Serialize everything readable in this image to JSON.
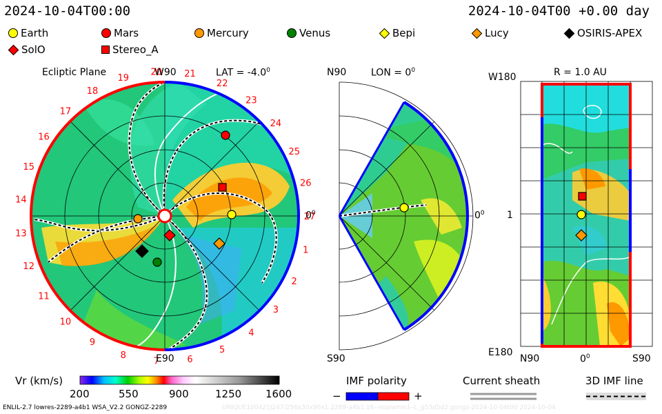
{
  "header": {
    "left_time": "2024-10-04T00:00",
    "right_time": "2024-10-04T00 +0.00 day"
  },
  "legend": [
    {
      "name": "Earth",
      "shape": "circle",
      "color": "#ffff00"
    },
    {
      "name": "Mars",
      "shape": "circle",
      "color": "#ff0000"
    },
    {
      "name": "Mercury",
      "shape": "circle",
      "color": "#ff9900"
    },
    {
      "name": "Venus",
      "shape": "circle",
      "color": "#008000"
    },
    {
      "name": "Bepi",
      "shape": "diamond",
      "color": "#ffff00"
    },
    {
      "name": "Lucy",
      "shape": "diamond",
      "color": "#ff9900"
    },
    {
      "name": "OSIRIS-APEX",
      "shape": "diamond",
      "color": "#000000"
    },
    {
      "name": "SolO",
      "shape": "diamond",
      "color": "#ff0000"
    },
    {
      "name": "Stereo_A",
      "shape": "square",
      "color": "#ff0000"
    }
  ],
  "panels": {
    "ecliptic": {
      "title": "Ecliptic Plane",
      "top_label": "W90",
      "bottom_label": "E90",
      "lat_label": "LAT = -4.0",
      "right_label": "0",
      "deg": "0"
    },
    "meridional": {
      "top_label": "N90",
      "bottom_label": "S90",
      "lon_label": "LON = 0",
      "right_label": "0",
      "deg": "0"
    },
    "rmap": {
      "title": "R = 1.0 AU",
      "top_label": "W180",
      "bottom_label": "E180",
      "left_tick": "1",
      "x_left": "N90",
      "x_mid": "0",
      "x_right": "S90",
      "deg": "0"
    }
  },
  "carrington_numbers": [
    "1",
    "2",
    "3",
    "4",
    "5",
    "6",
    "7",
    "8",
    "9",
    "10",
    "11",
    "12",
    "13",
    "14",
    "15",
    "16",
    "17",
    "18",
    "19",
    "20",
    "21",
    "22",
    "23",
    "24",
    "25",
    "26",
    "27"
  ],
  "colorbar": {
    "label": "Vr (km/s)",
    "ticks": [
      "200",
      "550",
      "900",
      "1250",
      "1600"
    ]
  },
  "imf_polarity": {
    "label": "IMF polarity",
    "minus": "−",
    "plus": "+",
    "colors": [
      "#0000ff",
      "#ff0000"
    ]
  },
  "current_sheath": {
    "label": "Current sheath"
  },
  "imf_line": {
    "label": "3D IMF line"
  },
  "footer": {
    "text": "ENLIL-2.7 lowres-2289-a4b1 WSA_V2.2 GONGZ-2289",
    "faint": "UNIQUE100421J247/256x30x90x1.2289-a4b1.16--noplamed--L_g53d5d2.gongz-2024-10-04t00   2024-10-04"
  },
  "chart_data": {
    "type": "heatmap",
    "variable": "Vr (km/s)",
    "range": [
      200,
      1600
    ],
    "objects_ecliptic": [
      {
        "name": "Earth",
        "lon_deg": 0,
        "r_au": 1.0
      },
      {
        "name": "Mars",
        "lon_deg": 58,
        "r_au": 1.5
      },
      {
        "name": "Mercury",
        "lon_deg": 170,
        "r_au": 0.42
      },
      {
        "name": "Venus",
        "lon_deg": -123,
        "r_au": 0.72
      },
      {
        "name": "Bepi",
        "lon_deg": 0,
        "r_au": 1.01
      },
      {
        "name": "Lucy",
        "lon_deg": -24,
        "r_au": 1.1
      },
      {
        "name": "OSIRIS-APEX",
        "lon_deg": -145,
        "r_au": 0.72
      },
      {
        "name": "SolO",
        "lon_deg": -36,
        "r_au": 0.3
      },
      {
        "name": "Stereo_A",
        "lon_deg": 30,
        "r_au": 0.95
      }
    ]
  }
}
